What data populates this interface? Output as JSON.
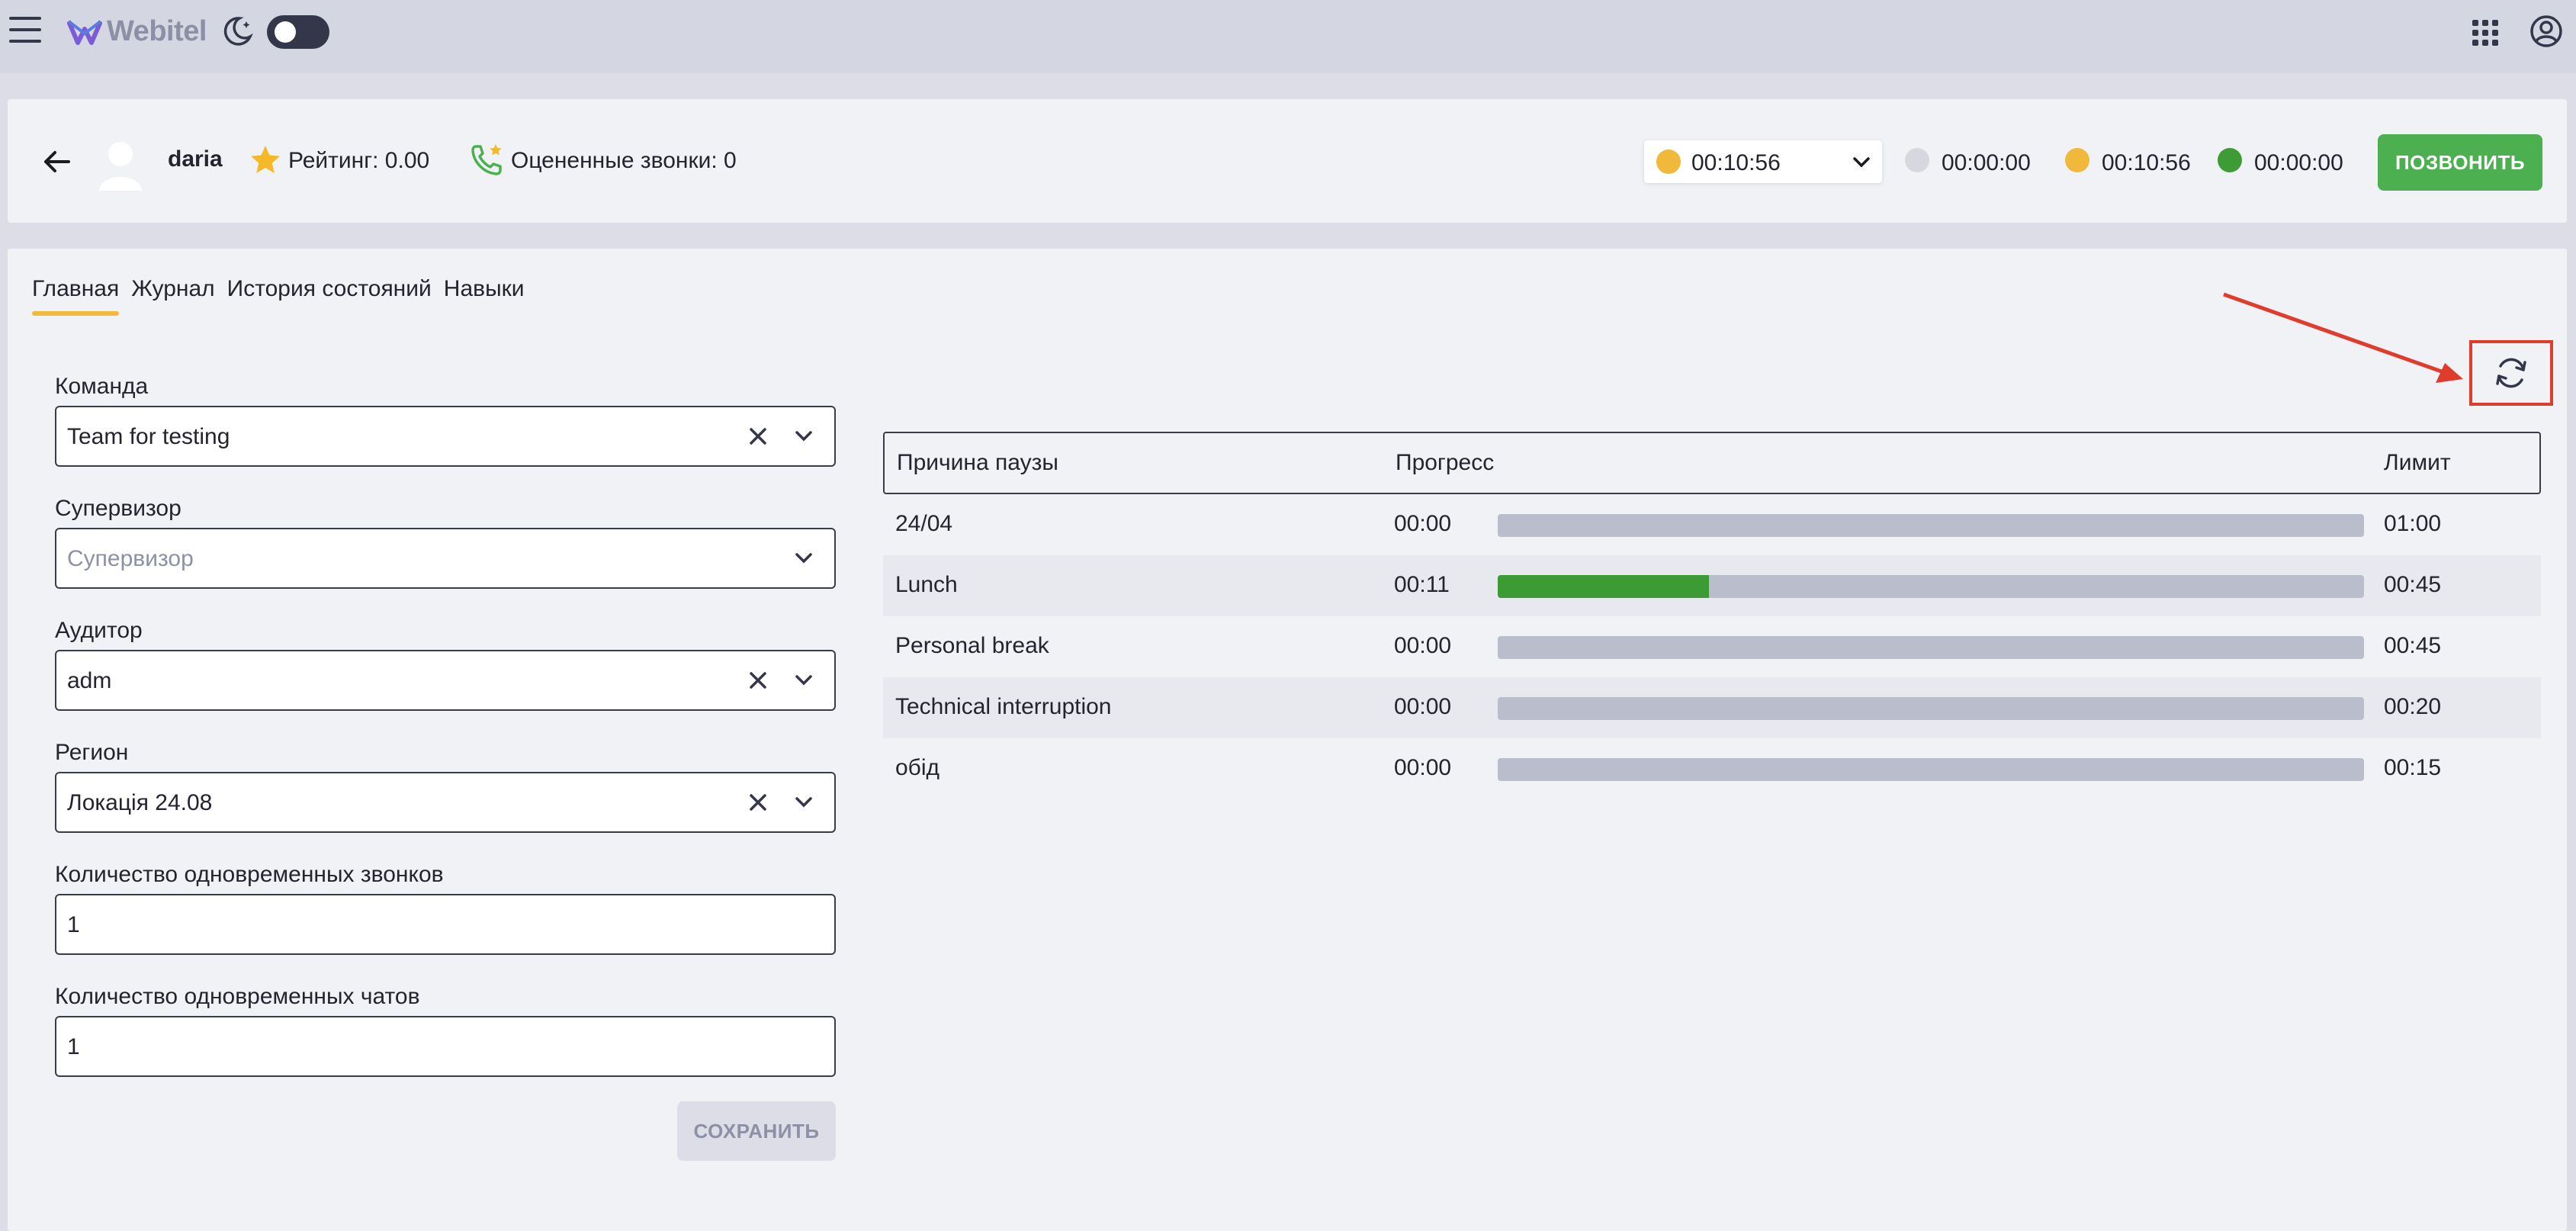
{
  "topbar": {
    "logo_text": "Webitel",
    "theme_toggle_on": false
  },
  "header": {
    "username": "daria",
    "rating": "Рейтинг: 0.00",
    "rated_calls": "Оцененные звонки: 0",
    "status_value": "00:10:56",
    "status_color": "#f0b93b",
    "stats": [
      {
        "color": "#d6d7df",
        "value": "00:00:00"
      },
      {
        "color": "#f0b93b",
        "value": "00:10:56"
      },
      {
        "color": "#3e9c35",
        "value": "00:00:00"
      }
    ],
    "call_button": "ПОЗВОНИТЬ"
  },
  "tabs": [
    "Главная",
    "Журнал",
    "История состояний",
    "Навыки"
  ],
  "form": {
    "team": {
      "label": "Команда",
      "value": "Team for testing"
    },
    "supervisor": {
      "label": "Супервизор",
      "placeholder": "Супервизор"
    },
    "auditor": {
      "label": "Аудитор",
      "value": "adm"
    },
    "region": {
      "label": "Регион",
      "value": "Локація 24.08"
    },
    "calls": {
      "label": "Количество одновременных звонков",
      "value": "1"
    },
    "chats": {
      "label": "Количество одновременных чатов",
      "value": "1"
    },
    "save_button": "СОХРАНИТЬ"
  },
  "pause_table": {
    "headers": {
      "reason": "Причина паузы",
      "progress": "Прогресс",
      "limit": "Лимит"
    },
    "rows": [
      {
        "reason": "24/04",
        "time": "00:00",
        "limit": "01:00",
        "progress": 0
      },
      {
        "reason": "Lunch",
        "time": "00:11",
        "limit": "00:45",
        "progress": 0.244
      },
      {
        "reason": "Personal break",
        "time": "00:00",
        "limit": "00:45",
        "progress": 0
      },
      {
        "reason": "Technical interruption",
        "time": "00:00",
        "limit": "00:20",
        "progress": 0
      },
      {
        "reason": "обід",
        "time": "00:00",
        "limit": "00:15",
        "progress": 0
      }
    ]
  },
  "colors": {
    "accent_green": "#4caf50",
    "tab_underline": "#f5b93a",
    "annotation_red": "#e03c2c"
  }
}
